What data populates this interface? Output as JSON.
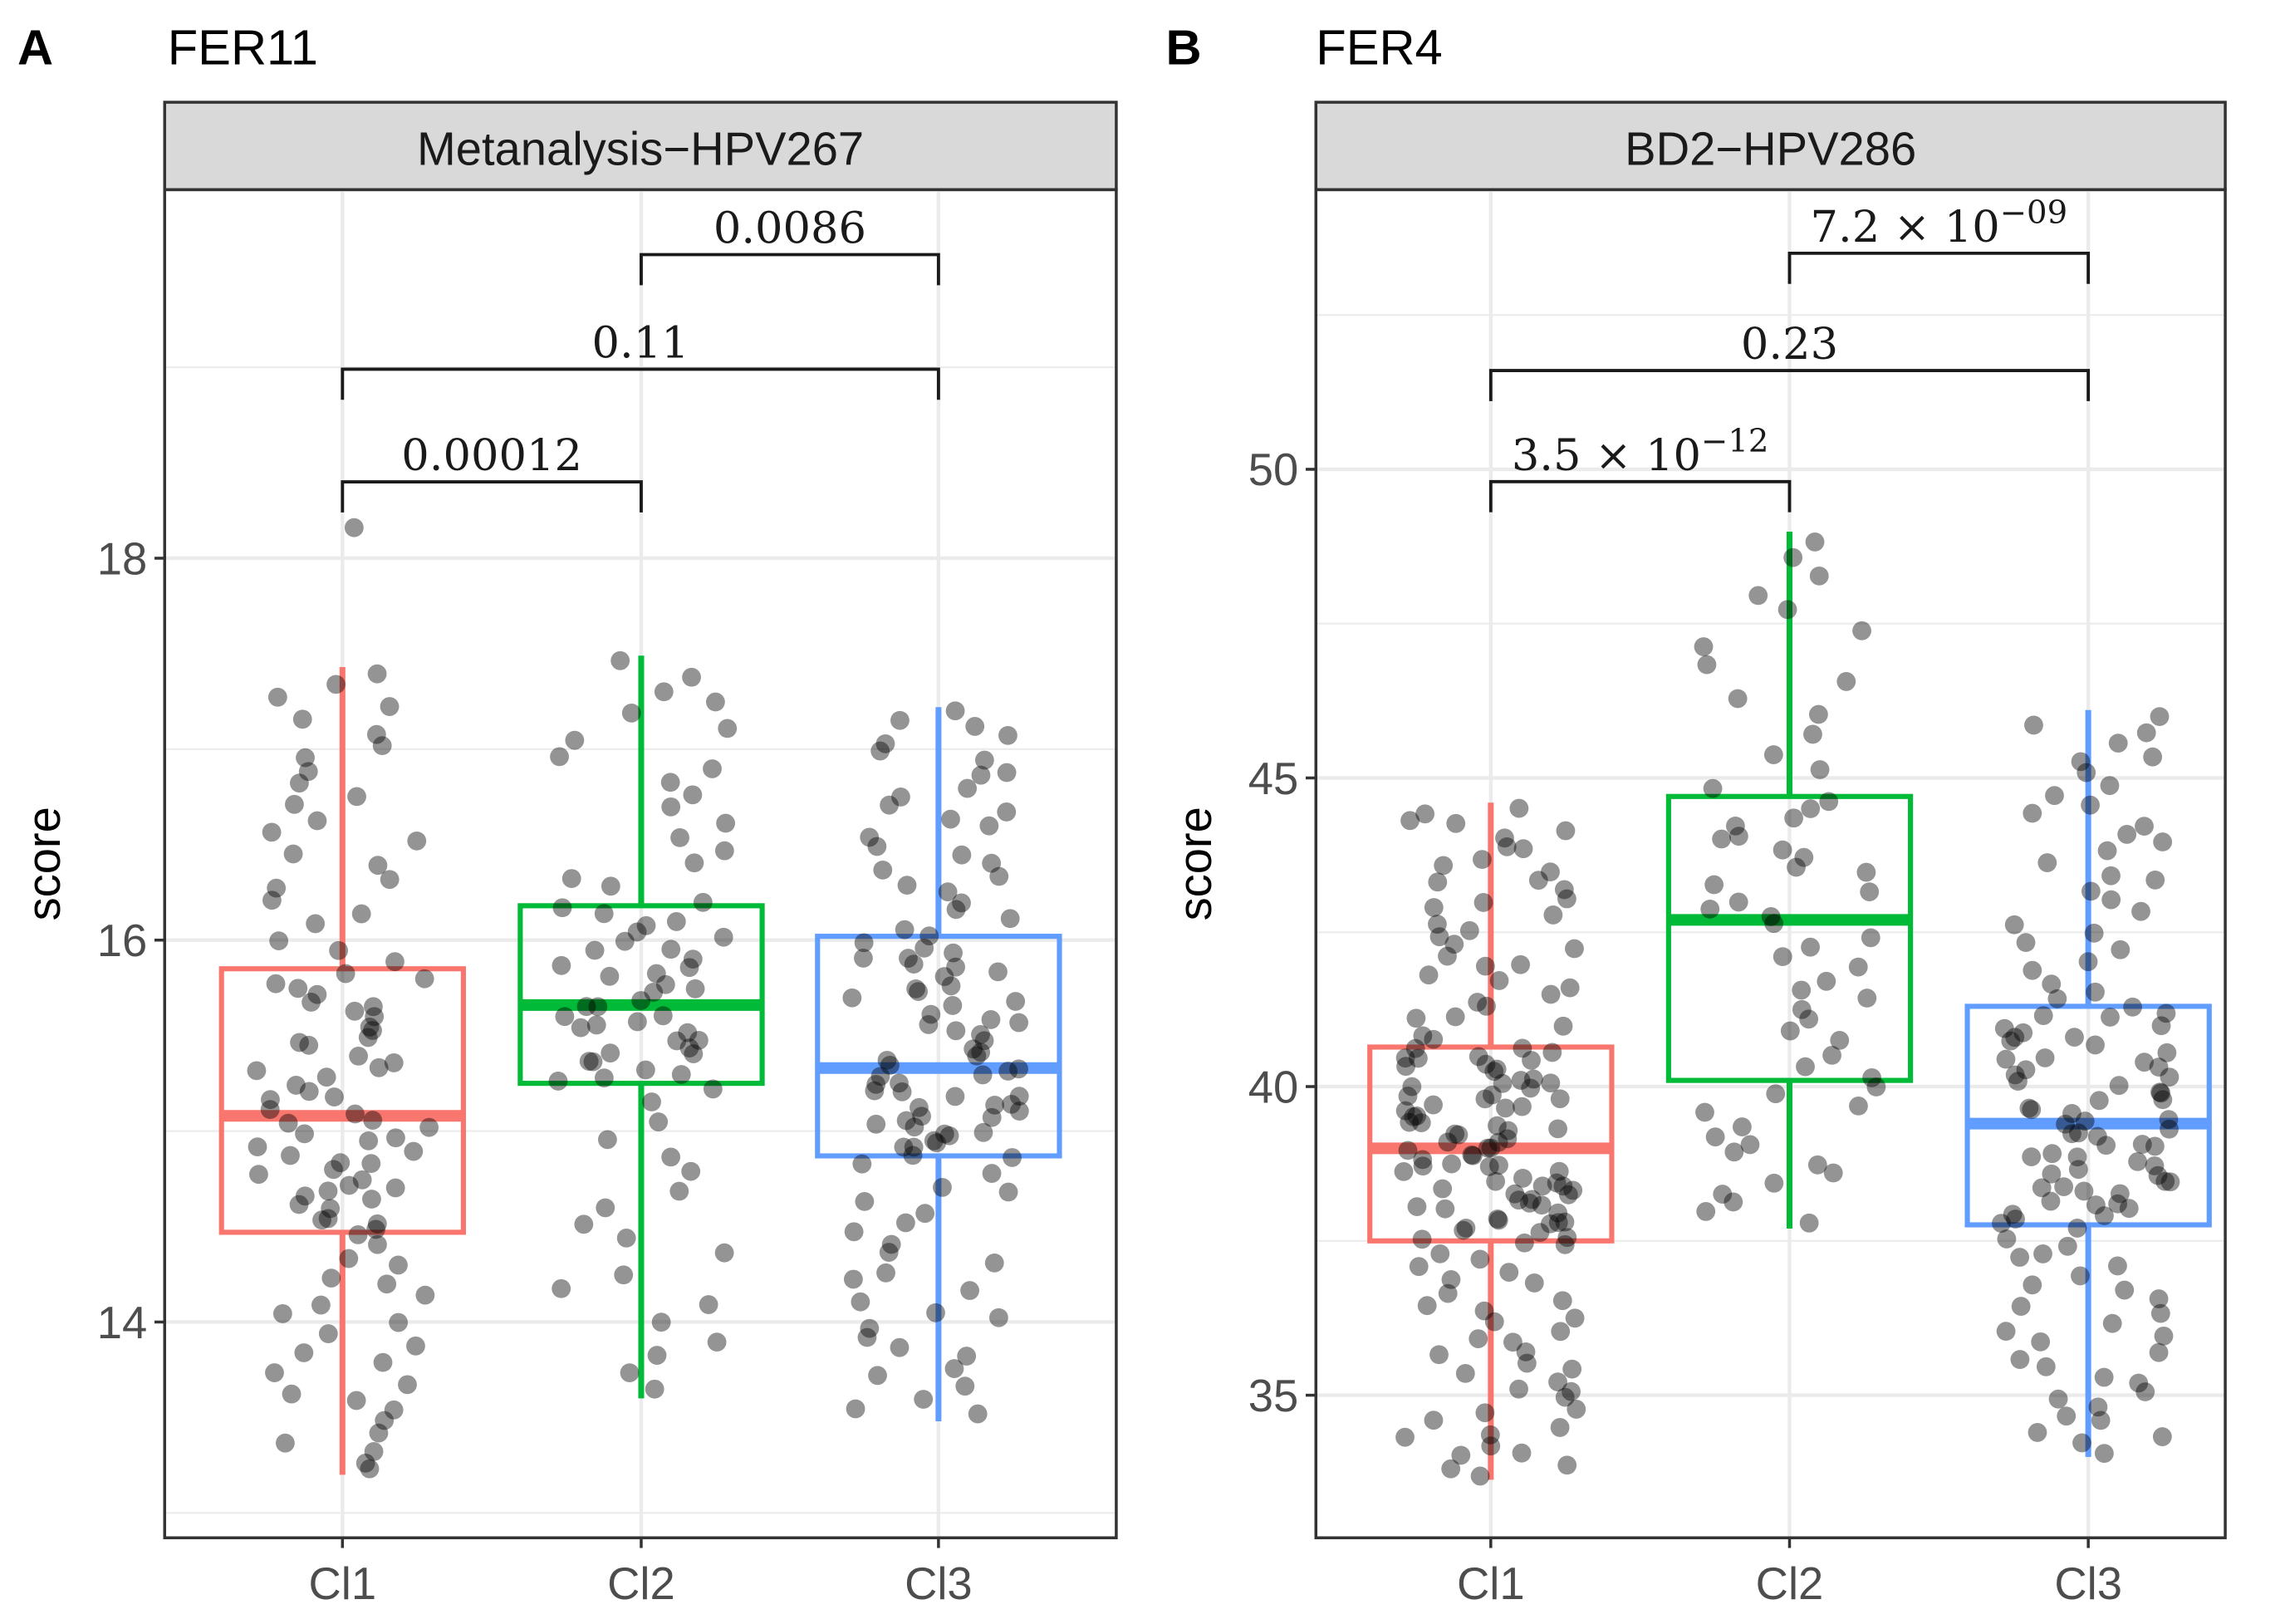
{
  "chart_data": [
    {
      "type": "box",
      "panel_label": "A",
      "title": "FER11",
      "strip": "Metanalysis−HPV267",
      "ylabel": "score",
      "xlabel": "",
      "ylim": [
        12.87,
        19.93
      ],
      "yticks": [
        14,
        16,
        18
      ],
      "categories": [
        "Cl1",
        "Cl2",
        "Cl3"
      ],
      "colors": [
        "#F8766D",
        "#00BA38",
        "#619CFF"
      ],
      "boxes": [
        {
          "min": 13.2,
          "q1": 14.47,
          "median": 15.08,
          "q3": 15.85,
          "max": 17.43,
          "n": 100,
          "outliers": [
            18.16
          ]
        },
        {
          "min": 13.6,
          "q1": 15.25,
          "median": 15.66,
          "q3": 16.18,
          "max": 17.49,
          "n": 75,
          "outliers": []
        },
        {
          "min": 13.48,
          "q1": 14.87,
          "median": 15.33,
          "q3": 16.02,
          "max": 17.22,
          "n": 110,
          "outliers": []
        }
      ],
      "comparisons": [
        {
          "from": 0,
          "to": 1,
          "y": 18.4,
          "label": "0.00012",
          "exponent": ""
        },
        {
          "from": 0,
          "to": 2,
          "y": 18.99,
          "label": "0.11",
          "exponent": ""
        },
        {
          "from": 1,
          "to": 2,
          "y": 19.59,
          "label": "0.0086",
          "exponent": ""
        }
      ]
    },
    {
      "type": "box",
      "panel_label": "B",
      "title": "FER4",
      "strip": "BD2−HPV286",
      "ylabel": "score",
      "xlabel": "",
      "ylim": [
        32.69,
        54.53
      ],
      "yticks": [
        35,
        40,
        45,
        50
      ],
      "categories": [
        "Cl1",
        "Cl2",
        "Cl3"
      ],
      "colors": [
        "#F8766D",
        "#00BA38",
        "#619CFF"
      ],
      "boxes": [
        {
          "min": 33.63,
          "q1": 37.5,
          "median": 39.0,
          "q3": 40.64,
          "max": 44.6,
          "n": 150,
          "outliers": []
        },
        {
          "min": 37.7,
          "q1": 40.1,
          "median": 42.7,
          "q3": 44.7,
          "max": 48.99,
          "n": 60,
          "outliers": []
        },
        {
          "min": 34.0,
          "q1": 37.76,
          "median": 39.4,
          "q3": 41.3,
          "max": 46.1,
          "n": 120,
          "outliers": []
        }
      ],
      "comparisons": [
        {
          "from": 0,
          "to": 1,
          "y": 49.8,
          "label": "3.5 × 10",
          "exponent": "−12"
        },
        {
          "from": 0,
          "to": 2,
          "y": 51.6,
          "label": "0.23",
          "exponent": ""
        },
        {
          "from": 1,
          "to": 2,
          "y": 53.5,
          "label": "7.2 × 10",
          "exponent": "−09"
        }
      ]
    }
  ]
}
